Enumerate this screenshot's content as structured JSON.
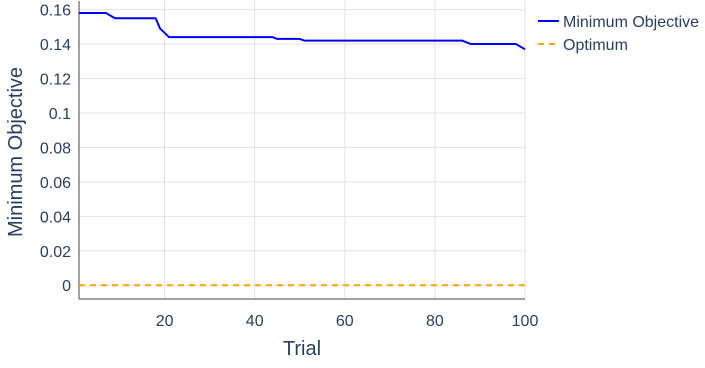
{
  "chart_data": {
    "type": "line",
    "title": "",
    "xlabel": "Trial",
    "ylabel": "Minimum Objective",
    "xlim": [
      1,
      100
    ],
    "ylim": [
      -0.008,
      0.165
    ],
    "x_ticks": [
      20,
      40,
      60,
      80,
      100
    ],
    "x_tick_labels": [
      "20",
      "40",
      "60",
      "80",
      "100"
    ],
    "y_ticks": [
      0,
      0.02,
      0.04,
      0.06,
      0.08,
      0.1,
      0.12,
      0.14,
      0.16
    ],
    "y_tick_labels": [
      "0",
      "0.02",
      "0.04",
      "0.06",
      "0.08",
      "0.1",
      "0.12",
      "0.14",
      "0.16"
    ],
    "grid": true,
    "legend_position": "top-right, outside plot",
    "series": [
      {
        "name": "Minimum Objective",
        "color": "#0000ff",
        "dash": "solid",
        "x": [
          1,
          7,
          9,
          18,
          19,
          21,
          44,
          45,
          50,
          51,
          86,
          88,
          98,
          100
        ],
        "y": [
          0.158,
          0.158,
          0.155,
          0.155,
          0.149,
          0.144,
          0.144,
          0.143,
          0.143,
          0.142,
          0.142,
          0.14,
          0.14,
          0.137
        ]
      },
      {
        "name": "Optimum",
        "color": "#ffa500",
        "dash": "dash",
        "x": [
          1,
          100
        ],
        "y": [
          0,
          0
        ]
      }
    ]
  }
}
